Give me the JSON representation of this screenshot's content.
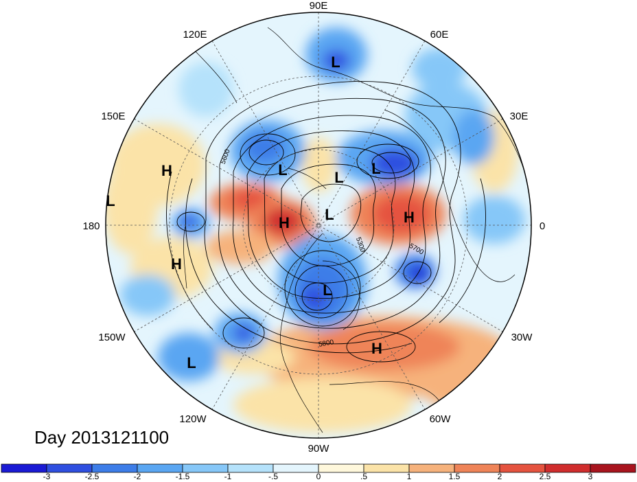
{
  "title": "Day 2013121100",
  "longitude_labels": [
    {
      "text": "90E"
    },
    {
      "text": "60E"
    },
    {
      "text": "30E"
    },
    {
      "text": "0"
    },
    {
      "text": "30W"
    },
    {
      "text": "60W"
    },
    {
      "text": "90W"
    },
    {
      "text": "120W"
    },
    {
      "text": "150W"
    },
    {
      "text": "180"
    },
    {
      "text": "150E"
    },
    {
      "text": "120E"
    }
  ],
  "pressure_systems": [
    {
      "type": "L"
    },
    {
      "type": "L"
    },
    {
      "type": "L"
    },
    {
      "type": "L"
    },
    {
      "type": "L"
    },
    {
      "type": "L"
    },
    {
      "type": "L"
    },
    {
      "type": "L"
    },
    {
      "type": "H"
    },
    {
      "type": "H"
    },
    {
      "type": "H"
    },
    {
      "type": "H"
    },
    {
      "type": "H"
    }
  ],
  "contour_labels": [
    "5600",
    "5300",
    "5700",
    "5800"
  ],
  "colorbar": {
    "ticks": [
      "-3",
      "-2.5",
      "-2",
      "-1.5",
      "-1",
      "-.5",
      "0",
      ".5",
      "1",
      "1.5",
      "2",
      "2.5",
      "3"
    ],
    "colors": [
      "#1a1ad4",
      "#2f4fe0",
      "#3d7de8",
      "#5aa6f2",
      "#86c7f8",
      "#b5e2fb",
      "#e4f5fd",
      "#fff8dc",
      "#fbe3a8",
      "#f6b27c",
      "#ef8458",
      "#e5533f",
      "#d02d2d",
      "#a8141e"
    ]
  }
}
